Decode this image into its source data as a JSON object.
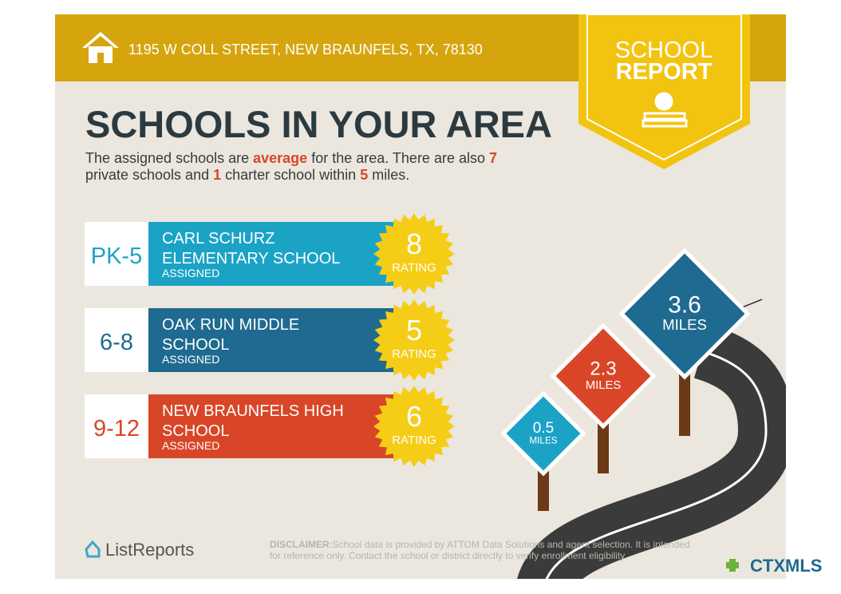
{
  "header": {
    "address": "1195 W COLL STREET, NEW BRAUNFELS, TX, 78130"
  },
  "badge": {
    "line1": "SCHOOL",
    "line2": "REPORT"
  },
  "title": "SCHOOLS IN YOUR AREA",
  "summary": {
    "lines": [
      [
        {
          "text": "The assigned schools are "
        },
        {
          "text": "average",
          "highlight": true
        },
        {
          "text": " for the area. There are also "
        },
        {
          "text": "7",
          "highlight": true
        }
      ],
      [
        {
          "text": "private schools and "
        },
        {
          "text": "1",
          "highlight": true
        },
        {
          "text": " charter school within "
        },
        {
          "text": "5",
          "highlight": true
        },
        {
          "text": " miles."
        }
      ]
    ]
  },
  "schools": [
    {
      "grades": "PK-5",
      "name": [
        "CARL SCHURZ",
        "ELEMENTARY SCHOOL"
      ],
      "status": "ASSIGNED",
      "rating": 8,
      "rating_label": "RATING",
      "color": "#1ba3c6"
    },
    {
      "grades": "6-8",
      "name": [
        "OAK RUN MIDDLE",
        "SCHOOL"
      ],
      "status": "ASSIGNED",
      "rating": 5,
      "rating_label": "RATING",
      "color": "#1f6a90"
    },
    {
      "grades": "9-12",
      "name": [
        "NEW BRAUNFELS HIGH",
        "SCHOOL"
      ],
      "status": "ASSIGNED",
      "rating": 6,
      "rating_label": "RATING",
      "color": "#d84627"
    }
  ],
  "signs": [
    {
      "distance": 0.5,
      "unit": "MILES",
      "color": "#1ba3c6"
    },
    {
      "distance": 2.3,
      "unit": "MILES",
      "color": "#d84627"
    },
    {
      "distance": 3.6,
      "unit": "MILES",
      "color": "#1f6a90"
    }
  ],
  "footer": {
    "brand": "ListReports",
    "disclaimer_label": "DISCLAIMER:",
    "disclaimer": [
      "School data is provided by ATTOM Data Solutions and agent selection. It is intended",
      "for reference only. Contact the school or district directly to verify enrollment eligibility."
    ],
    "mls": "CTXMLS"
  }
}
